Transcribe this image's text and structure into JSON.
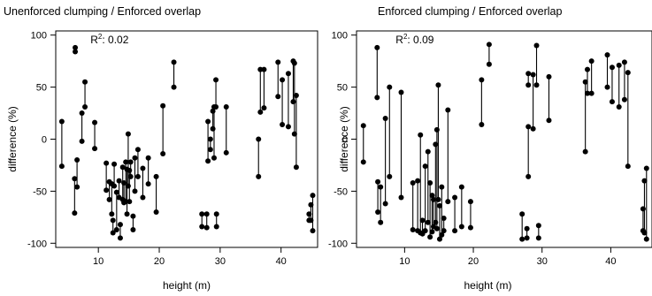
{
  "chart_data": [
    {
      "type": "scatter",
      "title": "Unenforced clumping / Enforced overlap",
      "xlabel": "height (m)",
      "ylabel": "difference (%)",
      "xlim": [
        3,
        46
      ],
      "ylim": [
        -104,
        104
      ],
      "xticks": [
        10,
        20,
        30,
        40
      ],
      "yticks": [
        -100,
        -50,
        0,
        50,
        100
      ],
      "grid": false,
      "annotation": {
        "prefix": "R",
        "sup": "2",
        "suffix": ": 0.02",
        "x": 8.7,
        "y": 92
      },
      "segments": [
        {
          "x": 4,
          "y1": 17,
          "y2": -26
        },
        {
          "x": 6.2,
          "y1": 84,
          "y2": 88
        },
        {
          "x": 6.1,
          "y1": -38,
          "y2": -71
        },
        {
          "x": 6.5,
          "y1": -20,
          "y2": -46
        },
        {
          "x": 7.3,
          "y1": 25,
          "y2": -2
        },
        {
          "x": 7.8,
          "y1": 55,
          "y2": 31
        },
        {
          "x": 9.4,
          "y1": 16,
          "y2": -9
        },
        {
          "x": 11.3,
          "y1": -23,
          "y2": -49
        },
        {
          "x": 11.8,
          "y1": -41,
          "y2": -58
        },
        {
          "x": 12.2,
          "y1": -43,
          "y2": -72
        },
        {
          "x": 12.4,
          "y1": -78,
          "y2": -90
        },
        {
          "x": 12.6,
          "y1": -24,
          "y2": -45
        },
        {
          "x": 13.0,
          "y1": -51,
          "y2": -87
        },
        {
          "x": 13.4,
          "y1": -40,
          "y2": -56
        },
        {
          "x": 13.6,
          "y1": -82,
          "y2": -95
        },
        {
          "x": 14.0,
          "y1": -27,
          "y2": -58
        },
        {
          "x": 14.2,
          "y1": -42,
          "y2": -61
        },
        {
          "x": 14.5,
          "y1": -22,
          "y2": -60
        },
        {
          "x": 14.7,
          "y1": -29,
          "y2": -72
        },
        {
          "x": 14.9,
          "y1": 5,
          "y2": -45
        },
        {
          "x": 15.1,
          "y1": -30,
          "y2": -60
        },
        {
          "x": 15.3,
          "y1": -22,
          "y2": -36
        },
        {
          "x": 15.7,
          "y1": -74,
          "y2": -87
        },
        {
          "x": 16.0,
          "y1": -18,
          "y2": -50
        },
        {
          "x": 16.5,
          "y1": -10,
          "y2": -36
        },
        {
          "x": 17.3,
          "y1": -28,
          "y2": -56
        },
        {
          "x": 18.2,
          "y1": -18,
          "y2": -43
        },
        {
          "x": 19.5,
          "y1": -36,
          "y2": -70
        },
        {
          "x": 20.6,
          "y1": 32,
          "y2": -14
        },
        {
          "x": 22.4,
          "y1": 74,
          "y2": 50
        },
        {
          "x": 27.0,
          "y1": -72,
          "y2": -84
        },
        {
          "x": 27.8,
          "y1": -72,
          "y2": -85
        },
        {
          "x": 28.0,
          "y1": 17,
          "y2": -21
        },
        {
          "x": 28.4,
          "y1": 0,
          "y2": -10
        },
        {
          "x": 28.8,
          "y1": 27,
          "y2": 10
        },
        {
          "x": 29.3,
          "y1": 57,
          "y2": 31
        },
        {
          "x": 29.4,
          "y1": -72,
          "y2": -84
        },
        {
          "x": 29.0,
          "y1": 31,
          "y2": -18
        },
        {
          "x": 31.0,
          "y1": 31,
          "y2": -13
        },
        {
          "x": 36.3,
          "y1": 0,
          "y2": -36
        },
        {
          "x": 36.6,
          "y1": 67,
          "y2": 26
        },
        {
          "x": 37.2,
          "y1": 67,
          "y2": 30
        },
        {
          "x": 39.5,
          "y1": 74,
          "y2": 41
        },
        {
          "x": 40.2,
          "y1": 57,
          "y2": 14
        },
        {
          "x": 41.2,
          "y1": 63,
          "y2": 12
        },
        {
          "x": 42.0,
          "y1": 75,
          "y2": 36
        },
        {
          "x": 42.2,
          "y1": 73,
          "y2": 5
        },
        {
          "x": 42.5,
          "y1": 42,
          "y2": -27
        },
        {
          "x": 45.2,
          "y1": -54,
          "y2": -88
        },
        {
          "x": 44.9,
          "y1": -63,
          "y2": -78
        },
        {
          "x": 44.6,
          "y1": -72,
          "y2": -78
        }
      ]
    },
    {
      "type": "scatter",
      "title": "Enforced clumping / Enforced overlap",
      "xlabel": "height (m)",
      "ylabel": "difference (%)",
      "xlim": [
        3,
        46
      ],
      "ylim": [
        -104,
        104
      ],
      "xticks": [
        10,
        20,
        30,
        40
      ],
      "yticks": [
        -100,
        -50,
        0,
        50,
        100
      ],
      "grid": false,
      "annotation": {
        "prefix": "R",
        "sup": "2",
        "suffix": ": 0.09",
        "x": 8.7,
        "y": 92
      },
      "segments": [
        {
          "x": 4,
          "y1": 13,
          "y2": -22
        },
        {
          "x": 6.0,
          "y1": 88,
          "y2": 40
        },
        {
          "x": 6.1,
          "y1": -41,
          "y2": -70
        },
        {
          "x": 6.5,
          "y1": -46,
          "y2": -80
        },
        {
          "x": 7.2,
          "y1": 20,
          "y2": -62
        },
        {
          "x": 7.8,
          "y1": 50,
          "y2": -36
        },
        {
          "x": 9.5,
          "y1": 45,
          "y2": -56
        },
        {
          "x": 11.2,
          "y1": -42,
          "y2": -87
        },
        {
          "x": 11.9,
          "y1": -40,
          "y2": -88
        },
        {
          "x": 12.3,
          "y1": 4,
          "y2": -90
        },
        {
          "x": 12.6,
          "y1": -78,
          "y2": -91
        },
        {
          "x": 13.0,
          "y1": -26,
          "y2": -88
        },
        {
          "x": 13.4,
          "y1": -12,
          "y2": -80
        },
        {
          "x": 13.7,
          "y1": -42,
          "y2": -94
        },
        {
          "x": 14.0,
          "y1": -54,
          "y2": -89
        },
        {
          "x": 14.2,
          "y1": -58,
          "y2": -84
        },
        {
          "x": 14.5,
          "y1": -5,
          "y2": -80
        },
        {
          "x": 14.7,
          "y1": 9,
          "y2": -86
        },
        {
          "x": 14.9,
          "y1": 52,
          "y2": -58
        },
        {
          "x": 15.1,
          "y1": -64,
          "y2": -96
        },
        {
          "x": 15.4,
          "y1": -46,
          "y2": -92
        },
        {
          "x": 15.7,
          "y1": -76,
          "y2": -88
        },
        {
          "x": 16.3,
          "y1": 28,
          "y2": -60
        },
        {
          "x": 17.3,
          "y1": -56,
          "y2": -88
        },
        {
          "x": 18.3,
          "y1": -46,
          "y2": -84
        },
        {
          "x": 19.6,
          "y1": -60,
          "y2": -85
        },
        {
          "x": 21.2,
          "y1": 57,
          "y2": 14
        },
        {
          "x": 22.3,
          "y1": 91,
          "y2": 72
        },
        {
          "x": 27.1,
          "y1": -72,
          "y2": -96
        },
        {
          "x": 27.8,
          "y1": -86,
          "y2": -95
        },
        {
          "x": 28.0,
          "y1": 63,
          "y2": 52
        },
        {
          "x": 28.0,
          "y1": 12,
          "y2": -36
        },
        {
          "x": 28.7,
          "y1": 62,
          "y2": 10
        },
        {
          "x": 29.2,
          "y1": 90,
          "y2": 52
        },
        {
          "x": 29.5,
          "y1": -83,
          "y2": -95
        },
        {
          "x": 31.0,
          "y1": 60,
          "y2": 18
        },
        {
          "x": 36.3,
          "y1": 55,
          "y2": -12
        },
        {
          "x": 36.6,
          "y1": 67,
          "y2": 44
        },
        {
          "x": 37.2,
          "y1": 75,
          "y2": 44
        },
        {
          "x": 39.5,
          "y1": 81,
          "y2": 50
        },
        {
          "x": 40.2,
          "y1": 69,
          "y2": 36
        },
        {
          "x": 41.2,
          "y1": 71,
          "y2": 31
        },
        {
          "x": 42.0,
          "y1": 74,
          "y2": 38
        },
        {
          "x": 42.5,
          "y1": 64,
          "y2": -26
        },
        {
          "x": 45.2,
          "y1": -28,
          "y2": -96
        },
        {
          "x": 44.9,
          "y1": -40,
          "y2": -90
        },
        {
          "x": 44.7,
          "y1": -67,
          "y2": -88
        }
      ]
    }
  ]
}
